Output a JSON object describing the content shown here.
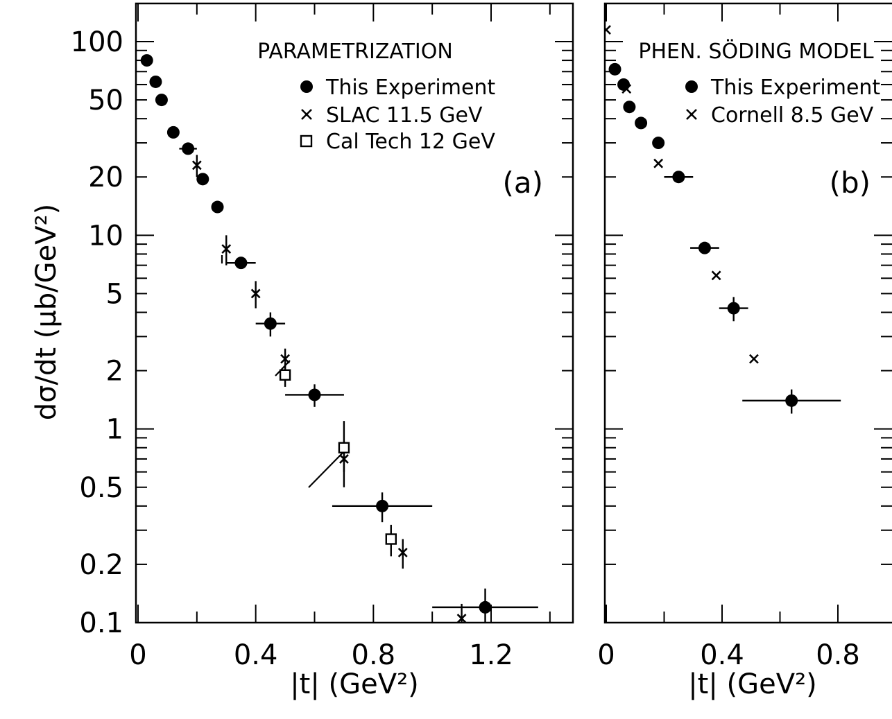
{
  "chart_data": [
    {
      "type": "scatter",
      "panel_label": "(a)",
      "title": "PARAMETRIZATION",
      "xlabel": "|t| (GeV²)",
      "ylabel": "dσ/dt (μb/GeV²)",
      "xlim": [
        0,
        1.5
      ],
      "ylim": [
        0.1,
        140
      ],
      "yscale": "log",
      "grid": false,
      "legend_position": "top-right",
      "x_ticks": [
        "0",
        "0.4",
        "0.8",
        "1.2"
      ],
      "x_tick_values": [
        0,
        0.4,
        0.8,
        1.2
      ],
      "y_ticks": [
        "0.1",
        "0.2",
        "0.5",
        "1",
        "2",
        "5",
        "10",
        "20",
        "50",
        "100"
      ],
      "y_tick_values": [
        0.1,
        0.2,
        0.5,
        1,
        2,
        5,
        10,
        20,
        50,
        100
      ],
      "series": [
        {
          "name": "This Experiment",
          "marker": "circle",
          "points": [
            {
              "x": 0.03,
              "y": 80
            },
            {
              "x": 0.06,
              "y": 62
            },
            {
              "x": 0.08,
              "y": 50
            },
            {
              "x": 0.12,
              "y": 34
            },
            {
              "x": 0.17,
              "y": 28,
              "xerr": 0.03
            },
            {
              "x": 0.22,
              "y": 19.5
            },
            {
              "x": 0.27,
              "y": 14
            },
            {
              "x": 0.35,
              "y": 7.2,
              "xerr": 0.05
            },
            {
              "x": 0.45,
              "y": 3.5,
              "xerr": 0.05,
              "yerr": 0.5
            },
            {
              "x": 0.6,
              "y": 1.5,
              "xerr": 0.1,
              "yerr": 0.2
            },
            {
              "x": 0.83,
              "y": 0.4,
              "xerr": 0.17,
              "yerr": 0.07
            },
            {
              "x": 1.18,
              "y": 0.12,
              "xerr": 0.18,
              "yerr": 0.03
            }
          ]
        },
        {
          "name": "SLAC 11.5 GeV",
          "marker": "cross",
          "points": [
            {
              "x": 0.2,
              "y": 23,
              "yerr": 3
            },
            {
              "x": 0.3,
              "y": 8.5,
              "yerr": 1.5
            },
            {
              "x": 0.4,
              "y": 5,
              "yerr": 0.8
            },
            {
              "x": 0.5,
              "y": 2.3,
              "yerr": 0.3
            },
            {
              "x": 0.7,
              "y": 0.7,
              "yerr": 0.1
            },
            {
              "x": 0.9,
              "y": 0.23,
              "yerr": 0.04
            },
            {
              "x": 1.1,
              "y": 0.105,
              "yerr": 0.02
            }
          ]
        },
        {
          "name": "Cal Tech 12 GeV",
          "marker": "square",
          "points": [
            {
              "x": 0.5,
              "y": 1.9,
              "yerr": 0.25
            },
            {
              "x": 0.7,
              "y": 0.8,
              "yerr": 0.3
            },
            {
              "x": 0.86,
              "y": 0.27,
              "yerr": 0.05
            }
          ]
        }
      ]
    },
    {
      "type": "scatter",
      "panel_label": "(b)",
      "title": "PHEN. SÖDING MODEL",
      "xlabel": "|t| (GeV²)",
      "xlim": [
        0,
        1.0
      ],
      "ylim": [
        0.1,
        140
      ],
      "yscale": "log",
      "grid": false,
      "legend_position": "top-right",
      "x_ticks": [
        "0",
        "0.4",
        "0.8"
      ],
      "x_tick_values": [
        0,
        0.4,
        0.8
      ],
      "series": [
        {
          "name": "This Experiment",
          "marker": "circle",
          "points": [
            {
              "x": 0.03,
              "y": 72
            },
            {
              "x": 0.06,
              "y": 60
            },
            {
              "x": 0.08,
              "y": 46
            },
            {
              "x": 0.12,
              "y": 38
            },
            {
              "x": 0.18,
              "y": 30
            },
            {
              "x": 0.25,
              "y": 20,
              "xerr": 0.05
            },
            {
              "x": 0.34,
              "y": 8.6,
              "xerr": 0.05
            },
            {
              "x": 0.44,
              "y": 4.2,
              "xerr": 0.05,
              "yerr": 0.6
            },
            {
              "x": 0.64,
              "y": 1.4,
              "xerr": 0.17,
              "yerr": 0.2
            }
          ]
        },
        {
          "name": "Cornell 8.5 GeV",
          "marker": "cross",
          "points": [
            {
              "x": 0.0,
              "y": 115
            },
            {
              "x": 0.07,
              "y": 57
            },
            {
              "x": 0.18,
              "y": 23.5
            },
            {
              "x": 0.38,
              "y": 6.2
            },
            {
              "x": 0.51,
              "y": 2.3
            }
          ]
        }
      ]
    }
  ]
}
